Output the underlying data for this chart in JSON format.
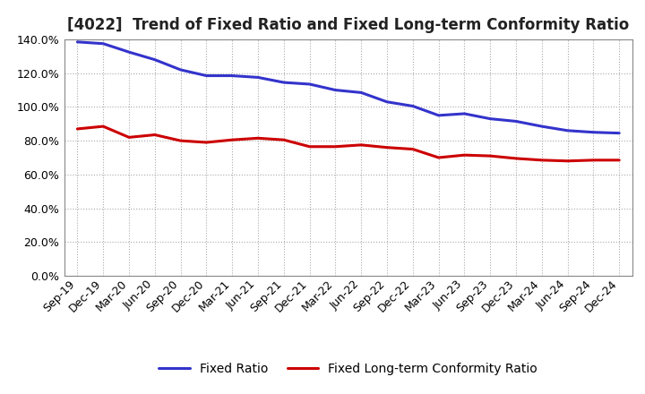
{
  "title": "[4022]  Trend of Fixed Ratio and Fixed Long-term Conformity Ratio",
  "x_labels": [
    "Sep-19",
    "Dec-19",
    "Mar-20",
    "Jun-20",
    "Sep-20",
    "Dec-20",
    "Mar-21",
    "Jun-21",
    "Sep-21",
    "Dec-21",
    "Mar-22",
    "Jun-22",
    "Sep-22",
    "Dec-22",
    "Mar-23",
    "Jun-23",
    "Sep-23",
    "Dec-23",
    "Mar-24",
    "Jun-24",
    "Sep-24",
    "Dec-24"
  ],
  "fixed_ratio": [
    138.5,
    137.5,
    132.5,
    128.0,
    122.0,
    118.5,
    118.5,
    117.5,
    114.5,
    113.5,
    110.0,
    108.5,
    103.0,
    100.5,
    95.0,
    96.0,
    93.0,
    91.5,
    88.5,
    86.0,
    85.0,
    84.5
  ],
  "fixed_lt_ratio": [
    87.0,
    88.5,
    82.0,
    83.5,
    80.0,
    79.0,
    80.5,
    81.5,
    80.5,
    76.5,
    76.5,
    77.5,
    76.0,
    75.0,
    70.0,
    71.5,
    71.0,
    69.5,
    68.5,
    68.0,
    68.5,
    68.5
  ],
  "fixed_ratio_color": "#3333cc",
  "fixed_lt_ratio_color": "#cc0000",
  "ylim": [
    0,
    140
  ],
  "yticks": [
    0,
    20,
    40,
    60,
    80,
    100,
    120,
    140
  ],
  "background_color": "#ffffff",
  "grid_color": "#aaaaaa",
  "spine_color": "#888888",
  "title_fontsize": 12,
  "legend_fontsize": 10,
  "tick_fontsize": 9,
  "line_width": 2.2
}
